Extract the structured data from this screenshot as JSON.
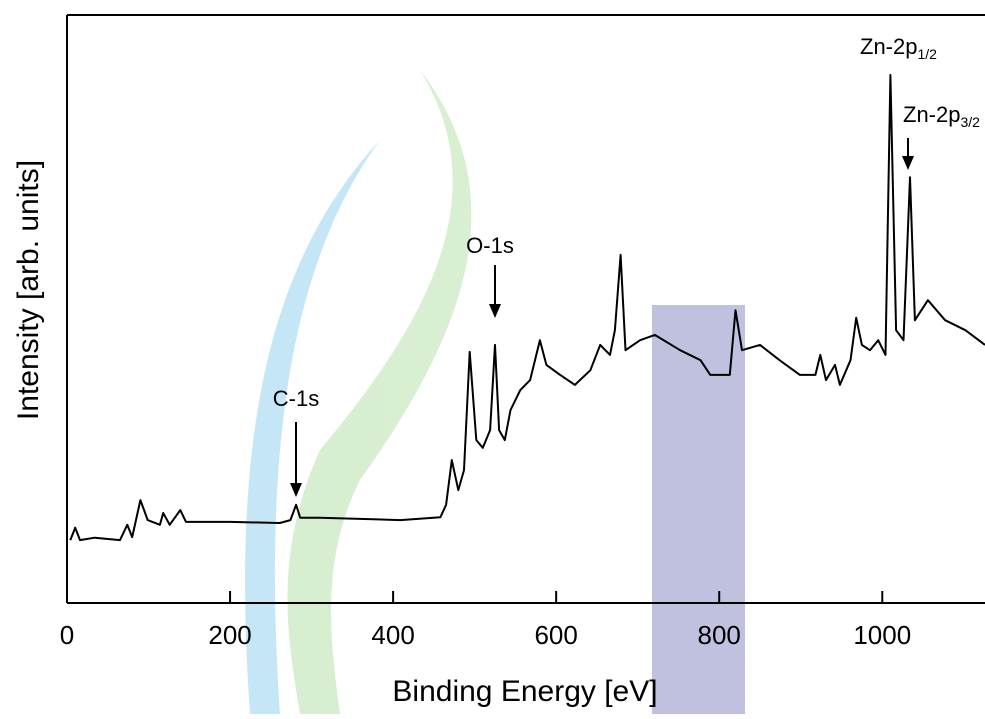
{
  "chart_data": {
    "type": "line",
    "xlabel": "Binding Energy [eV]",
    "ylabel": "Intensity [arb. units]",
    "color": "#000000",
    "x": [
      4,
      10,
      16,
      34,
      65,
      74,
      80,
      90,
      99,
      114,
      118,
      126,
      139,
      146,
      200,
      261,
      274,
      281,
      286,
      310,
      409,
      458,
      465,
      472,
      480,
      487,
      494,
      502,
      510,
      519,
      525,
      530,
      537,
      544,
      556,
      568,
      580,
      588,
      605,
      623,
      642,
      654,
      666,
      672,
      679,
      685,
      703,
      721,
      752,
      777,
      789,
      813,
      820,
      828,
      850,
      874,
      899,
      918,
      924,
      931,
      942,
      948,
      961,
      968,
      975,
      985,
      995,
      1004,
      1010,
      1017,
      1026,
      1034,
      1040,
      1056,
      1077,
      1102,
      1126
    ],
    "values": [
      10.7,
      12.8,
      10.7,
      11.1,
      10.7,
      13.3,
      11.2,
      17.5,
      14.1,
      13.3,
      15.3,
      13.3,
      15.8,
      13.8,
      13.8,
      13.6,
      14.1,
      16.7,
      14.5,
      14.5,
      14.1,
      14.6,
      16.7,
      24.3,
      19.2,
      22.6,
      42.7,
      27.7,
      26.4,
      29.4,
      43.9,
      29.4,
      27.7,
      32.8,
      36.2,
      37.9,
      44.7,
      40.5,
      38.8,
      37.1,
      39.6,
      43.9,
      42.2,
      46.4,
      59.2,
      43.0,
      44.7,
      45.6,
      43.0,
      41.3,
      38.8,
      38.8,
      49.8,
      43.0,
      43.9,
      41.3,
      38.8,
      38.8,
      42.2,
      37.9,
      40.5,
      37.1,
      41.3,
      48.5,
      43.9,
      43.0,
      44.7,
      42.2,
      89.8,
      46.4,
      44.7,
      72.4,
      48.1,
      51.5,
      48.1,
      46.4,
      43.9
    ],
    "xlim": [
      0,
      1126
    ],
    "ylim": [
      0,
      100
    ],
    "xticks": [
      0,
      200,
      400,
      600,
      800,
      1000
    ],
    "annotations": [
      {
        "text": "C-1s"
      },
      {
        "text": "O-1s"
      },
      {
        "text": "Zn-2p",
        "subscript": "1/2"
      },
      {
        "text": "Zn-2p",
        "subscript": "3/2"
      }
    ]
  }
}
